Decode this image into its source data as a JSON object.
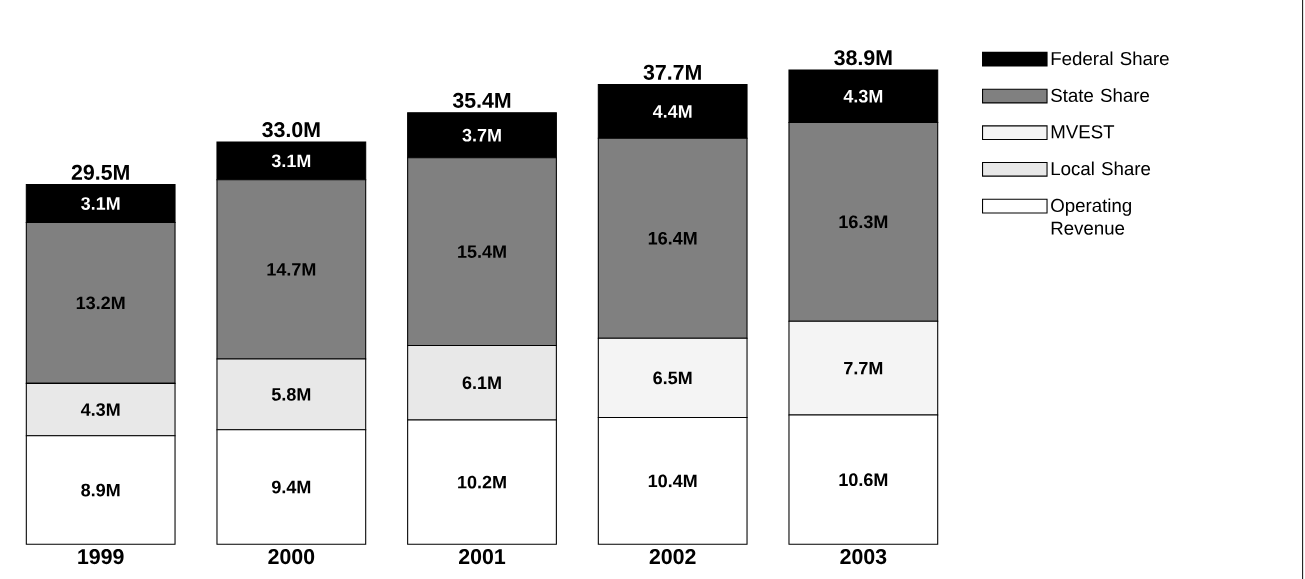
{
  "chart_data": {
    "type": "bar",
    "stacked": true,
    "categories": [
      "1999",
      "2000",
      "2001",
      "2002",
      "2003"
    ],
    "series": [
      {
        "name": "Operating Revenue",
        "color": "#ffffff",
        "values": [
          8.9,
          9.4,
          10.2,
          10.4,
          10.6
        ],
        "value_labels": [
          "8.9M",
          "9.4M",
          "10.2M",
          "10.4M",
          "10.6M"
        ]
      },
      {
        "name": "Local Share",
        "color": "#e8e8e8",
        "values": [
          4.3,
          5.8,
          6.1,
          null,
          null
        ],
        "value_labels": [
          "4.3M",
          "5.8M",
          "6.1M",
          null,
          null
        ]
      },
      {
        "name": "MVEST",
        "color": "#f4f4f4",
        "values": [
          null,
          null,
          null,
          6.5,
          7.7
        ],
        "value_labels": [
          null,
          null,
          null,
          "6.5M",
          "7.7M"
        ]
      },
      {
        "name": "State Share",
        "color": "#808080",
        "values": [
          13.2,
          14.7,
          15.4,
          16.4,
          16.3
        ],
        "value_labels": [
          "13.2M",
          "14.7M",
          "15.4M",
          "16.4M",
          "16.3M"
        ]
      },
      {
        "name": "Federal Share",
        "color": "#000000",
        "values": [
          3.1,
          3.1,
          3.7,
          4.4,
          4.3
        ],
        "value_labels": [
          "3.1M",
          "3.1M",
          "3.7M",
          "4.4M",
          "4.3M"
        ]
      }
    ],
    "totals": [
      "29.5M",
      "33.0M",
      "35.4M",
      "37.7M",
      "38.9M"
    ],
    "legend": "right"
  }
}
